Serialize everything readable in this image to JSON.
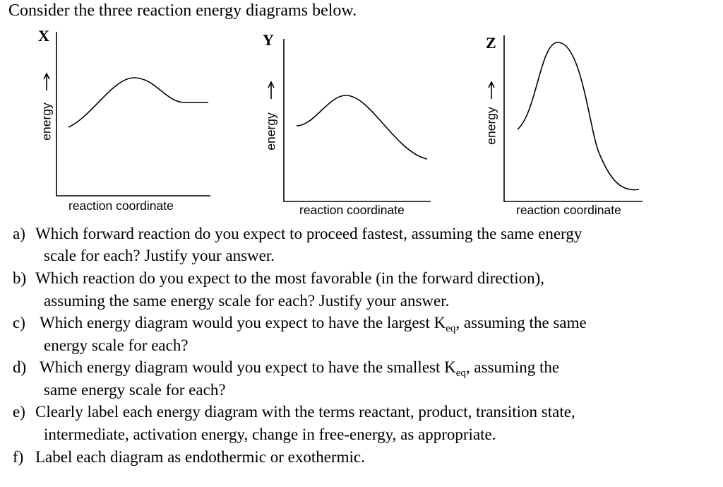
{
  "header": {
    "title": "Consider the three reaction energy diagrams below."
  },
  "diagrams": [
    {
      "label": "X",
      "y_label": "energy",
      "x_label": "reaction coordinate"
    },
    {
      "label": "Y",
      "y_label": "energy",
      "x_label": "reaction coordinate"
    },
    {
      "label": "Z",
      "y_label": "energy",
      "x_label": "reaction coordinate"
    }
  ],
  "questions": [
    {
      "label": "a)",
      "lines": [
        [
          "Which forward reaction do you expect to proceed fastest, assuming the same energy"
        ],
        [
          "scale for each?  Justify your answer."
        ]
      ]
    },
    {
      "label": "b)",
      "lines": [
        [
          "Which reaction do you expect to the most favorable (in the forward direction),"
        ],
        [
          "assuming the same energy scale for each?  Justify your answer."
        ]
      ]
    },
    {
      "label": "c)",
      "lines": [
        [
          "Which energy diagram would you expect to have the largest K",
          "eq",
          ", assuming the same"
        ],
        [
          "energy scale for each?"
        ]
      ]
    },
    {
      "label": "d)",
      "lines": [
        [
          "Which energy diagram would you expect to have the smallest K",
          "eq",
          ", assuming the"
        ],
        [
          "same energy scale for each?"
        ]
      ]
    },
    {
      "label": "e)",
      "lines": [
        [
          "Clearly label each energy diagram with the terms reactant, product, transition state,"
        ],
        [
          "intermediate, activation energy, change in free-energy, as appropriate."
        ]
      ]
    },
    {
      "label": "f)",
      "lines": [
        [
          "Label each diagram as endothermic or exothermic."
        ]
      ]
    }
  ]
}
